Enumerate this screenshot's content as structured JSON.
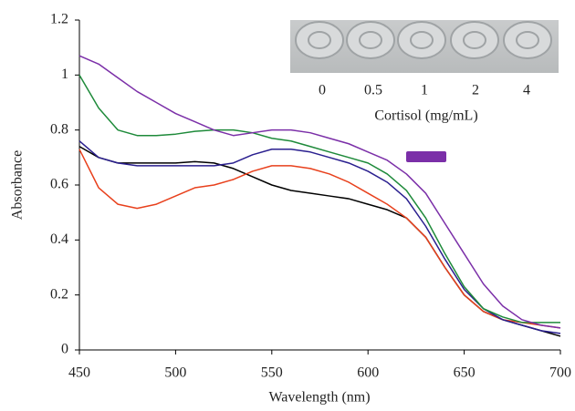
{
  "chart_data": {
    "type": "line",
    "x_label": "Wavelength (nm)",
    "y_label": "Absorbance",
    "x": [
      450,
      460,
      470,
      480,
      490,
      500,
      510,
      520,
      530,
      540,
      550,
      560,
      570,
      580,
      590,
      600,
      610,
      620,
      630,
      640,
      650,
      660,
      670,
      680,
      690,
      700
    ],
    "series": [
      {
        "color": "#000000",
        "values": [
          0.74,
          0.7,
          0.68,
          0.68,
          0.68,
          0.68,
          0.685,
          0.68,
          0.66,
          0.63,
          0.6,
          0.58,
          0.57,
          0.56,
          0.55,
          0.53,
          0.51,
          0.48,
          0.41,
          0.3,
          0.2,
          0.14,
          0.11,
          0.09,
          0.07,
          0.05
        ]
      },
      {
        "color": "#e8401c",
        "values": [
          0.73,
          0.59,
          0.53,
          0.515,
          0.53,
          0.56,
          0.59,
          0.6,
          0.62,
          0.65,
          0.67,
          0.67,
          0.66,
          0.64,
          0.61,
          0.57,
          0.53,
          0.48,
          0.41,
          0.3,
          0.2,
          0.14,
          0.11,
          0.1,
          0.09,
          0.08
        ]
      },
      {
        "color": "#2a1f8f",
        "values": [
          0.76,
          0.7,
          0.68,
          0.67,
          0.67,
          0.67,
          0.67,
          0.67,
          0.68,
          0.71,
          0.73,
          0.73,
          0.72,
          0.7,
          0.68,
          0.65,
          0.61,
          0.55,
          0.45,
          0.33,
          0.22,
          0.15,
          0.11,
          0.09,
          0.07,
          0.06
        ]
      },
      {
        "color": "#1e8a3a",
        "values": [
          1.0,
          0.88,
          0.8,
          0.78,
          0.78,
          0.785,
          0.795,
          0.8,
          0.8,
          0.79,
          0.77,
          0.76,
          0.74,
          0.72,
          0.7,
          0.68,
          0.64,
          0.58,
          0.48,
          0.35,
          0.23,
          0.15,
          0.12,
          0.1,
          0.1,
          0.1
        ]
      },
      {
        "color": "#7b2fa8",
        "values": [
          1.07,
          1.04,
          0.99,
          0.94,
          0.9,
          0.86,
          0.83,
          0.8,
          0.78,
          0.79,
          0.8,
          0.8,
          0.79,
          0.77,
          0.75,
          0.72,
          0.69,
          0.64,
          0.57,
          0.46,
          0.35,
          0.24,
          0.16,
          0.11,
          0.09,
          0.08
        ]
      }
    ],
    "xlim": [
      450,
      700
    ],
    "xticks": [
      450,
      500,
      550,
      600,
      650,
      700
    ],
    "ylim": [
      0,
      1.2
    ],
    "yticks": [
      0,
      0.2,
      0.4,
      0.6,
      0.8,
      1,
      1.2
    ],
    "inset": {
      "labels": [
        "0",
        "0.5",
        "1",
        "2",
        "4"
      ],
      "title": "Cortisol (mg/mL)"
    }
  }
}
